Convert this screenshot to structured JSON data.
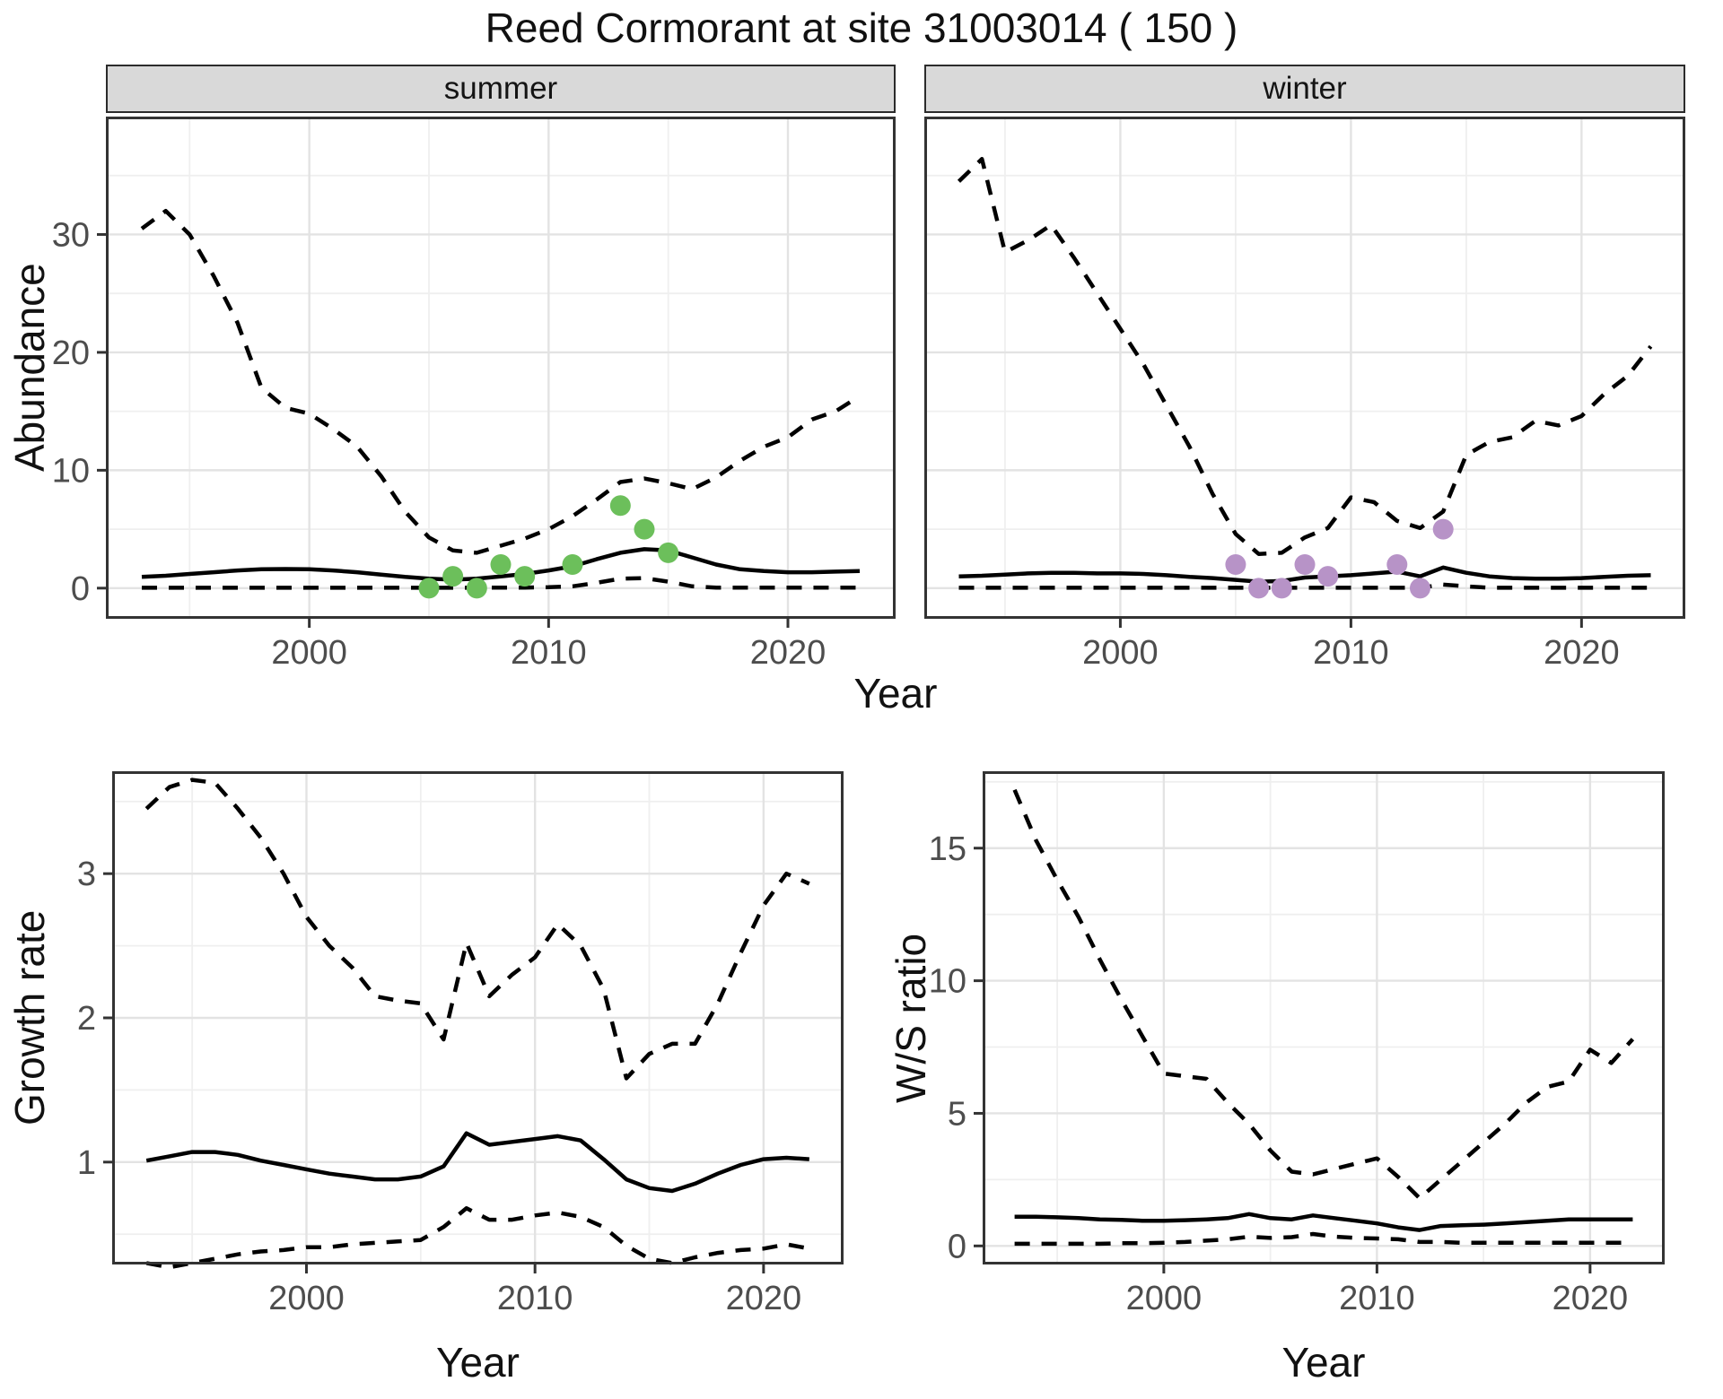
{
  "title": "Reed Cormorant at site 31003014 ( 150 )",
  "facets": {
    "summer": "summer",
    "winter": "winter"
  },
  "axis_labels": {
    "abundance": "Abundance",
    "growth": "Growth rate",
    "ws": "W/S ratio",
    "year": "Year"
  },
  "style": {
    "strip_bg": "#d9d9d9",
    "panel_border": "#333333",
    "grid_major": "#e3e3e3",
    "grid_minor": "#efefef",
    "axis_text": "#4d4d4d",
    "line_color": "#000000",
    "summer_point_color": "#6cbf5b",
    "winter_point_color": "#b793c7"
  },
  "chart_data": [
    {
      "id": "summer-abundance",
      "type": "line",
      "title": "summer",
      "xlabel": "Year",
      "ylabel": "Abundance",
      "x": [
        1993,
        1994,
        1995,
        1996,
        1997,
        1998,
        1999,
        2000,
        2001,
        2002,
        2003,
        2004,
        2005,
        2006,
        2007,
        2008,
        2009,
        2010,
        2011,
        2012,
        2013,
        2014,
        2015,
        2016,
        2017,
        2018,
        2019,
        2020,
        2021,
        2022,
        2023
      ],
      "series": [
        {
          "name": "upper-ci-dashed",
          "style": "dashed",
          "values": [
            30.5,
            32,
            30,
            26.5,
            22.5,
            17,
            15.3,
            14.8,
            13.5,
            12,
            9.5,
            6.5,
            4.3,
            3.2,
            3,
            3.6,
            4.2,
            5,
            6.1,
            7.5,
            9,
            9.3,
            8.9,
            8.4,
            9.4,
            10.8,
            12,
            12.8,
            14.3,
            15,
            16.3
          ]
        },
        {
          "name": "median-solid",
          "style": "solid",
          "values": [
            0.95,
            1.05,
            1.2,
            1.35,
            1.5,
            1.6,
            1.62,
            1.6,
            1.5,
            1.35,
            1.15,
            0.95,
            0.8,
            0.72,
            0.8,
            1,
            1.2,
            1.5,
            1.85,
            2.45,
            3,
            3.3,
            3.2,
            2.6,
            2,
            1.6,
            1.45,
            1.35,
            1.35,
            1.4,
            1.45
          ]
        },
        {
          "name": "lower-ci-dashed",
          "style": "dashed",
          "values": [
            0.03,
            0.03,
            0.03,
            0.03,
            0.03,
            0.03,
            0.03,
            0.03,
            0.03,
            0.03,
            0.03,
            0.03,
            0.03,
            0.03,
            0.03,
            0.05,
            0.05,
            0.08,
            0.15,
            0.45,
            0.8,
            0.85,
            0.55,
            0.15,
            0.05,
            0.05,
            0.05,
            0.05,
            0.05,
            0.05,
            0.05
          ]
        }
      ],
      "points": {
        "name": "observed-counts-summer",
        "color": "#6cbf5b",
        "xy": [
          [
            2005,
            0
          ],
          [
            2006,
            1
          ],
          [
            2007,
            0
          ],
          [
            2008,
            2
          ],
          [
            2009,
            1
          ],
          [
            2011,
            2
          ],
          [
            2013,
            7
          ],
          [
            2014,
            5
          ],
          [
            2015,
            3
          ]
        ]
      },
      "xlim": [
        1991.5,
        2024.5
      ],
      "ylim": [
        -2.6,
        40.0
      ],
      "x_ticks": [
        2000,
        2010,
        2020
      ],
      "y_ticks": [
        0,
        10,
        20,
        30
      ],
      "x_minor": [
        1995,
        2005,
        2015
      ],
      "y_minor": [
        5,
        15,
        25,
        35
      ],
      "show_y_axis": true
    },
    {
      "id": "winter-abundance",
      "type": "line",
      "title": "winter",
      "xlabel": "Year",
      "ylabel": "Abundance",
      "x": [
        1993,
        1994,
        1995,
        1996,
        1997,
        1998,
        1999,
        2000,
        2001,
        2002,
        2003,
        2004,
        2005,
        2006,
        2007,
        2008,
        2009,
        2010,
        2011,
        2012,
        2013,
        2014,
        2015,
        2016,
        2017,
        2018,
        2019,
        2020,
        2021,
        2022,
        2023
      ],
      "series": [
        {
          "name": "upper-ci-dashed",
          "style": "dashed",
          "values": [
            34.5,
            36.4,
            28.5,
            29.5,
            30.8,
            28,
            25,
            22,
            19,
            15.5,
            12,
            8,
            4.6,
            2.9,
            3,
            4.3,
            5.1,
            7.7,
            7.3,
            5.7,
            5.1,
            6.5,
            11.3,
            12.4,
            12.8,
            14.2,
            13.8,
            14.6,
            16.5,
            18,
            20.5
          ]
        },
        {
          "name": "median-solid",
          "style": "solid",
          "values": [
            1,
            1.05,
            1.15,
            1.25,
            1.3,
            1.3,
            1.25,
            1.25,
            1.2,
            1.1,
            0.95,
            0.85,
            0.7,
            0.55,
            0.6,
            0.9,
            1,
            1.1,
            1.25,
            1.4,
            1,
            1.75,
            1.3,
            1,
            0.85,
            0.8,
            0.8,
            0.85,
            0.95,
            1.05,
            1.1
          ]
        },
        {
          "name": "lower-ci-dashed",
          "style": "dashed",
          "values": [
            0.03,
            0.03,
            0.03,
            0.03,
            0.03,
            0.03,
            0.03,
            0.03,
            0.03,
            0.03,
            0.03,
            0.03,
            0.03,
            0.03,
            0.03,
            0.03,
            0.03,
            0.03,
            0.03,
            0.03,
            0.05,
            0.3,
            0.15,
            0.03,
            0.03,
            0.03,
            0.03,
            0.03,
            0.03,
            0.03,
            0.03
          ]
        }
      ],
      "points": {
        "name": "observed-counts-winter",
        "color": "#b793c7",
        "xy": [
          [
            2005,
            2
          ],
          [
            2006,
            0
          ],
          [
            2007,
            0
          ],
          [
            2008,
            2
          ],
          [
            2009,
            1
          ],
          [
            2012,
            2
          ],
          [
            2013,
            0
          ],
          [
            2014,
            5
          ]
        ]
      },
      "xlim": [
        1991.5,
        2024.5
      ],
      "ylim": [
        -2.6,
        40.0
      ],
      "x_ticks": [
        2000,
        2010,
        2020
      ],
      "y_ticks": [
        0,
        10,
        20,
        30
      ],
      "x_minor": [
        1995,
        2005,
        2015
      ],
      "y_minor": [
        5,
        15,
        25,
        35
      ],
      "show_y_axis": false
    },
    {
      "id": "growth-rate",
      "type": "line",
      "title": "Growth rate",
      "xlabel": "Year",
      "ylabel": "Growth rate",
      "x": [
        1993,
        1994,
        1995,
        1996,
        1997,
        1998,
        1999,
        2000,
        2001,
        2002,
        2003,
        2004,
        2005,
        2006,
        2007,
        2008,
        2009,
        2010,
        2011,
        2012,
        2013,
        2014,
        2015,
        2016,
        2017,
        2018,
        2019,
        2020,
        2021,
        2022
      ],
      "series": [
        {
          "name": "upper-ci-dashed",
          "style": "dashed",
          "values": [
            3.45,
            3.6,
            3.65,
            3.63,
            3.45,
            3.25,
            3,
            2.7,
            2.5,
            2.35,
            2.15,
            2.12,
            2.1,
            1.85,
            2.52,
            2.15,
            2.3,
            2.42,
            2.65,
            2.5,
            2.2,
            1.58,
            1.75,
            1.82,
            1.82,
            2.1,
            2.45,
            2.78,
            3,
            2.93
          ]
        },
        {
          "name": "median-solid",
          "style": "solid",
          "values": [
            1.01,
            1.04,
            1.07,
            1.07,
            1.05,
            1.01,
            0.98,
            0.95,
            0.92,
            0.9,
            0.88,
            0.88,
            0.9,
            0.97,
            1.2,
            1.12,
            1.14,
            1.16,
            1.18,
            1.15,
            1.02,
            0.88,
            0.82,
            0.8,
            0.85,
            0.92,
            0.98,
            1.02,
            1.03,
            1.02
          ]
        },
        {
          "name": "lower-ci-dashed",
          "style": "dashed",
          "values": [
            0.3,
            0.27,
            0.3,
            0.33,
            0.36,
            0.38,
            0.39,
            0.41,
            0.41,
            0.43,
            0.44,
            0.45,
            0.46,
            0.55,
            0.68,
            0.6,
            0.6,
            0.63,
            0.65,
            0.62,
            0.55,
            0.42,
            0.33,
            0.3,
            0.34,
            0.37,
            0.39,
            0.4,
            0.43,
            0.4
          ]
        }
      ],
      "xlim": [
        1991.5,
        2023.5
      ],
      "ylim": [
        0.29,
        3.71
      ],
      "x_ticks": [
        2000,
        2010,
        2020
      ],
      "y_ticks": [
        1,
        2,
        3
      ],
      "x_minor": [
        1995,
        2005,
        2015
      ],
      "y_minor": [
        0.5,
        1.5,
        2.5,
        3.5
      ],
      "show_y_axis": true
    },
    {
      "id": "ws-ratio",
      "type": "line",
      "title": "W/S ratio",
      "xlabel": "Year",
      "ylabel": "W/S ratio",
      "x": [
        1993,
        1994,
        1995,
        1996,
        1997,
        1998,
        1999,
        2000,
        2001,
        2002,
        2003,
        2004,
        2005,
        2006,
        2007,
        2008,
        2009,
        2010,
        2011,
        2012,
        2013,
        2014,
        2015,
        2016,
        2017,
        2018,
        2019,
        2020,
        2021,
        2022
      ],
      "series": [
        {
          "name": "upper-ci-dashed",
          "style": "dashed",
          "values": [
            17.2,
            15.3,
            13.8,
            12.4,
            10.8,
            9.3,
            7.9,
            6.5,
            6.4,
            6.3,
            5.4,
            4.6,
            3.6,
            2.8,
            2.7,
            2.9,
            3.1,
            3.3,
            2.6,
            1.8,
            2.5,
            3.2,
            3.9,
            4.6,
            5.4,
            6,
            6.2,
            7.4,
            6.9,
            7.8
          ]
        },
        {
          "name": "median-solid",
          "style": "solid",
          "values": [
            1.1,
            1.1,
            1.08,
            1.05,
            1,
            0.98,
            0.95,
            0.95,
            0.97,
            1,
            1.05,
            1.2,
            1.05,
            1,
            1.15,
            1.05,
            0.95,
            0.85,
            0.7,
            0.6,
            0.75,
            0.78,
            0.8,
            0.85,
            0.9,
            0.95,
            1,
            1,
            1,
            1
          ]
        },
        {
          "name": "lower-ci-dashed",
          "style": "dashed",
          "values": [
            0.08,
            0.08,
            0.08,
            0.08,
            0.08,
            0.1,
            0.1,
            0.12,
            0.15,
            0.2,
            0.25,
            0.35,
            0.3,
            0.33,
            0.45,
            0.35,
            0.3,
            0.28,
            0.25,
            0.15,
            0.15,
            0.12,
            0.12,
            0.12,
            0.12,
            0.12,
            0.12,
            0.12,
            0.12,
            0.12
          ]
        }
      ],
      "xlim": [
        1991.5,
        2023.5
      ],
      "ylim": [
        -0.7,
        17.9
      ],
      "x_ticks": [
        2000,
        2010,
        2020
      ],
      "y_ticks": [
        0,
        5,
        10,
        15
      ],
      "x_minor": [
        1995,
        2005,
        2015
      ],
      "y_minor": [
        2.5,
        7.5,
        12.5,
        17.5
      ],
      "show_y_axis": true
    }
  ]
}
